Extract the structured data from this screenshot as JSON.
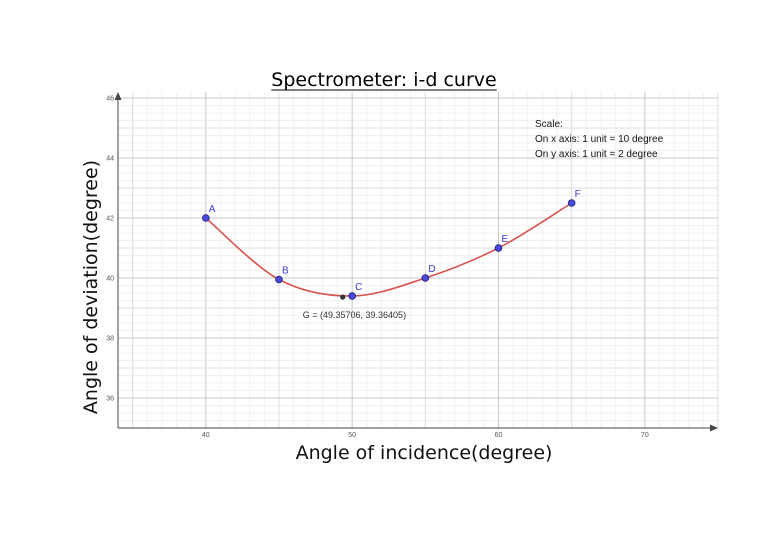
{
  "chart_data": {
    "type": "line",
    "title": "Spectrometer: i-d curve",
    "xlabel": "Angle of incidence(degree)",
    "ylabel": "Angle of deviation(degree)",
    "xlim": [
      34,
      75
    ],
    "ylim": [
      35,
      46.2
    ],
    "x_ticks": [
      "40",
      "50",
      "60",
      "70"
    ],
    "y_ticks": [
      "36",
      "38",
      "40",
      "42",
      "44",
      "46"
    ],
    "grid": true,
    "smooth": true,
    "series": [
      {
        "name": "",
        "color": "#d9534f",
        "points": [
          {
            "label": "A",
            "x": 40,
            "y": 42
          },
          {
            "label": "B",
            "x": 45,
            "y": 39.95
          },
          {
            "label": "C",
            "x": 50,
            "y": 39.4
          },
          {
            "label": "D",
            "x": 55,
            "y": 40
          },
          {
            "label": "E",
            "x": 60,
            "y": 41
          },
          {
            "label": "F",
            "x": 65,
            "y": 42.5
          }
        ]
      }
    ],
    "minimum_point": {
      "label": "G = (49.35706, 39.36405)",
      "x": 49.35706,
      "y": 39.36405
    },
    "scale_note": [
      "Scale:",
      "On x axis: 1 unit = 10 degree",
      "On y axis: 1 unit = 2 degree"
    ],
    "colors": {
      "curve": "#d9534f",
      "point": "#4a4ad8",
      "point_stroke": "#1e1e7a",
      "min_point": "#333333"
    }
  }
}
